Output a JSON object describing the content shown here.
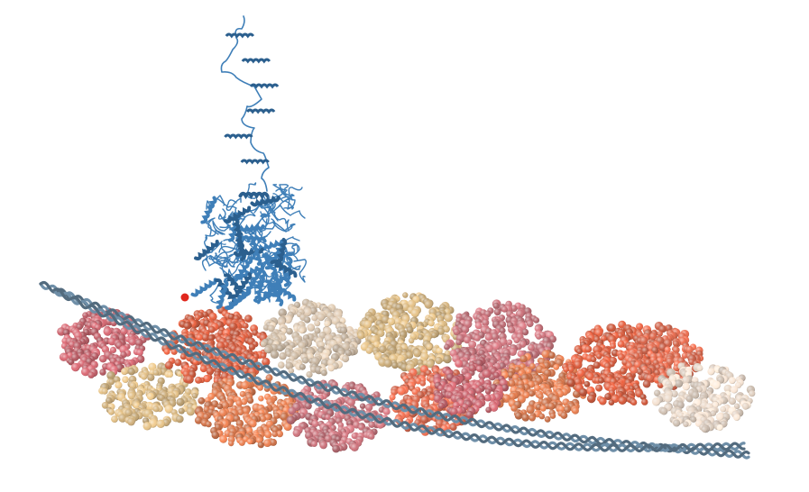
{
  "figure": {
    "subject": "myosin-ii-head-on-actin-tropomyosin-filament",
    "colors": {
      "background": "#ffffff",
      "myosin_cartoon": "#3f7fb8",
      "myosin_cartoon_dark": "#2b5f8e",
      "tropomyosin_coil": "#6f8fa8",
      "marker": "#e0271d",
      "actin_palette": [
        "#c9606a",
        "#dd5a3a",
        "#e0784a",
        "#d9c4ac",
        "#d9b77f",
        "#c96f78",
        "#e2674a",
        "#ead8c8"
      ]
    },
    "actin_subunits": [
      {
        "name": "actin-subunit-1",
        "color": "#c9606a"
      },
      {
        "name": "actin-subunit-2",
        "color": "#d9b77f"
      },
      {
        "name": "actin-subunit-3",
        "color": "#dd5a3a"
      },
      {
        "name": "actin-subunit-4",
        "color": "#e0784a"
      },
      {
        "name": "actin-subunit-5",
        "color": "#d9c4ac"
      },
      {
        "name": "actin-subunit-6",
        "color": "#c96f78"
      },
      {
        "name": "actin-subunit-7",
        "color": "#d9b77f"
      },
      {
        "name": "actin-subunit-8",
        "color": "#e2674a"
      },
      {
        "name": "actin-subunit-9",
        "color": "#c96f78"
      },
      {
        "name": "actin-subunit-10",
        "color": "#e0784a"
      },
      {
        "name": "actin-subunit-11",
        "color": "#dd5a3a"
      },
      {
        "name": "actin-subunit-12",
        "color": "#c9606a"
      },
      {
        "name": "actin-subunit-13",
        "color": "#e2674a"
      },
      {
        "name": "actin-subunit-14",
        "color": "#ead8c8"
      }
    ]
  }
}
